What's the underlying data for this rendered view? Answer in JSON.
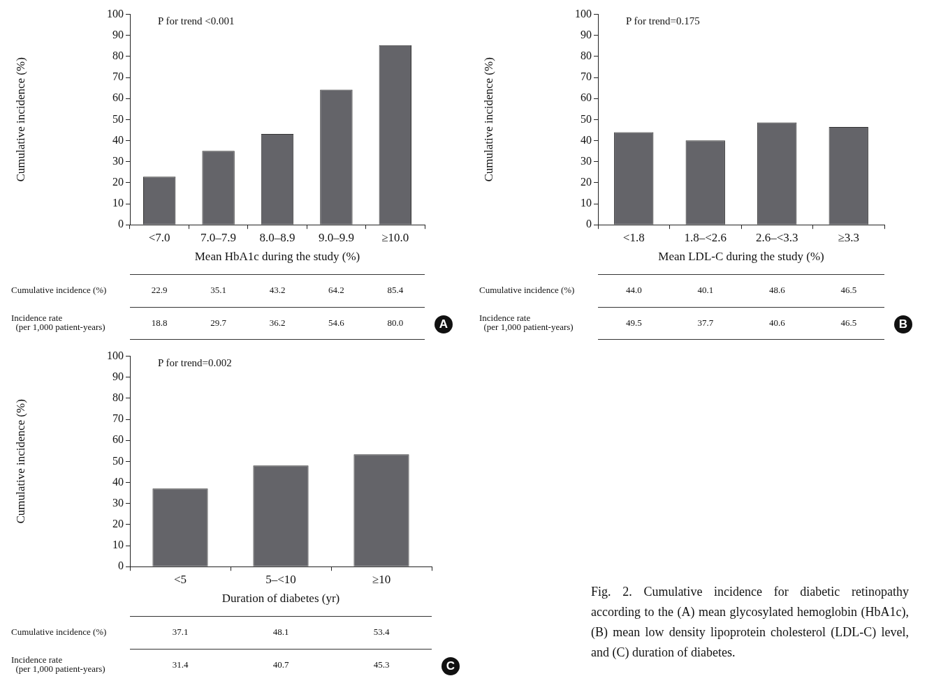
{
  "chart_data": [
    {
      "type": "bar",
      "xlabel": "Mean HbA1c during the study (%)",
      "ylabel": "Cumulative incidence (%)",
      "categories": [
        "<7.0",
        "7.0–7.9",
        "8.0–8.9",
        "9.0–9.9",
        "≥10.0"
      ],
      "series": [
        {
          "name": "Cumulative incidence (%)",
          "color": "#646469",
          "values": [
            22.9,
            35.1,
            43.2,
            64.2,
            85.4
          ],
          "value_labels": [
            "22.9",
            "35.1",
            "43.2",
            "64.2",
            "85.4"
          ]
        }
      ],
      "ylim": [
        0,
        100
      ],
      "yticks": [
        0,
        10,
        20,
        30,
        40,
        50,
        60,
        70,
        80,
        90,
        100
      ],
      "annotations": [
        "P for trend <0.001",
        "Incidence rate\n  (per 1,000 patient-years)",
        "A",
        "18.8",
        "29.7",
        "36.2",
        "54.6",
        "80.0"
      ]
    },
    {
      "type": "bar",
      "xlabel": "Mean LDL-C during the study (%)",
      "ylabel": "Cumulative incidence (%)",
      "categories": [
        "<1.8",
        "1.8–<2.6",
        "2.6–<3.3",
        "≥3.3"
      ],
      "series": [
        {
          "name": "Cumulative incidence (%)",
          "color": "#646469",
          "values": [
            44.0,
            40.1,
            48.6,
            46.5
          ],
          "value_labels": [
            "44.0",
            "40.1",
            "48.6",
            "46.5"
          ]
        }
      ],
      "ylim": [
        0,
        100
      ],
      "yticks": [
        0,
        10,
        20,
        30,
        40,
        50,
        60,
        70,
        80,
        90,
        100
      ],
      "annotations": [
        "P for trend=0.175",
        "Incidence rate\n  (per 1,000 patient-years)",
        "B",
        "49.5",
        "37.7",
        "40.6",
        "46.5"
      ]
    },
    {
      "type": "bar",
      "xlabel": "Duration of diabetes (yr)",
      "ylabel": "Cumulative incidence (%)",
      "categories": [
        "<5",
        "5–<10",
        "≥10"
      ],
      "series": [
        {
          "name": "Cumulative incidence (%)",
          "color": "#646469",
          "values": [
            37.1,
            48.1,
            53.4
          ],
          "value_labels": [
            "37.1",
            "48.1",
            "53.4"
          ]
        }
      ],
      "ylim": [
        0,
        100
      ],
      "yticks": [
        0,
        10,
        20,
        30,
        40,
        50,
        60,
        70,
        80,
        90,
        100
      ],
      "annotations": [
        "P for trend=0.002",
        "Incidence rate\n  (per 1,000 patient-years)",
        "C",
        "31.4",
        "40.7",
        "45.3",
        "Fig. 2. Cumulative incidence for diabetic retinopathy according to the (A) mean glycosylated hemoglobin (HbA1c), (B) mean low density lipoprotein cholesterol (LDL-C) level, and (C) duration of diabetes."
      ]
    }
  ]
}
